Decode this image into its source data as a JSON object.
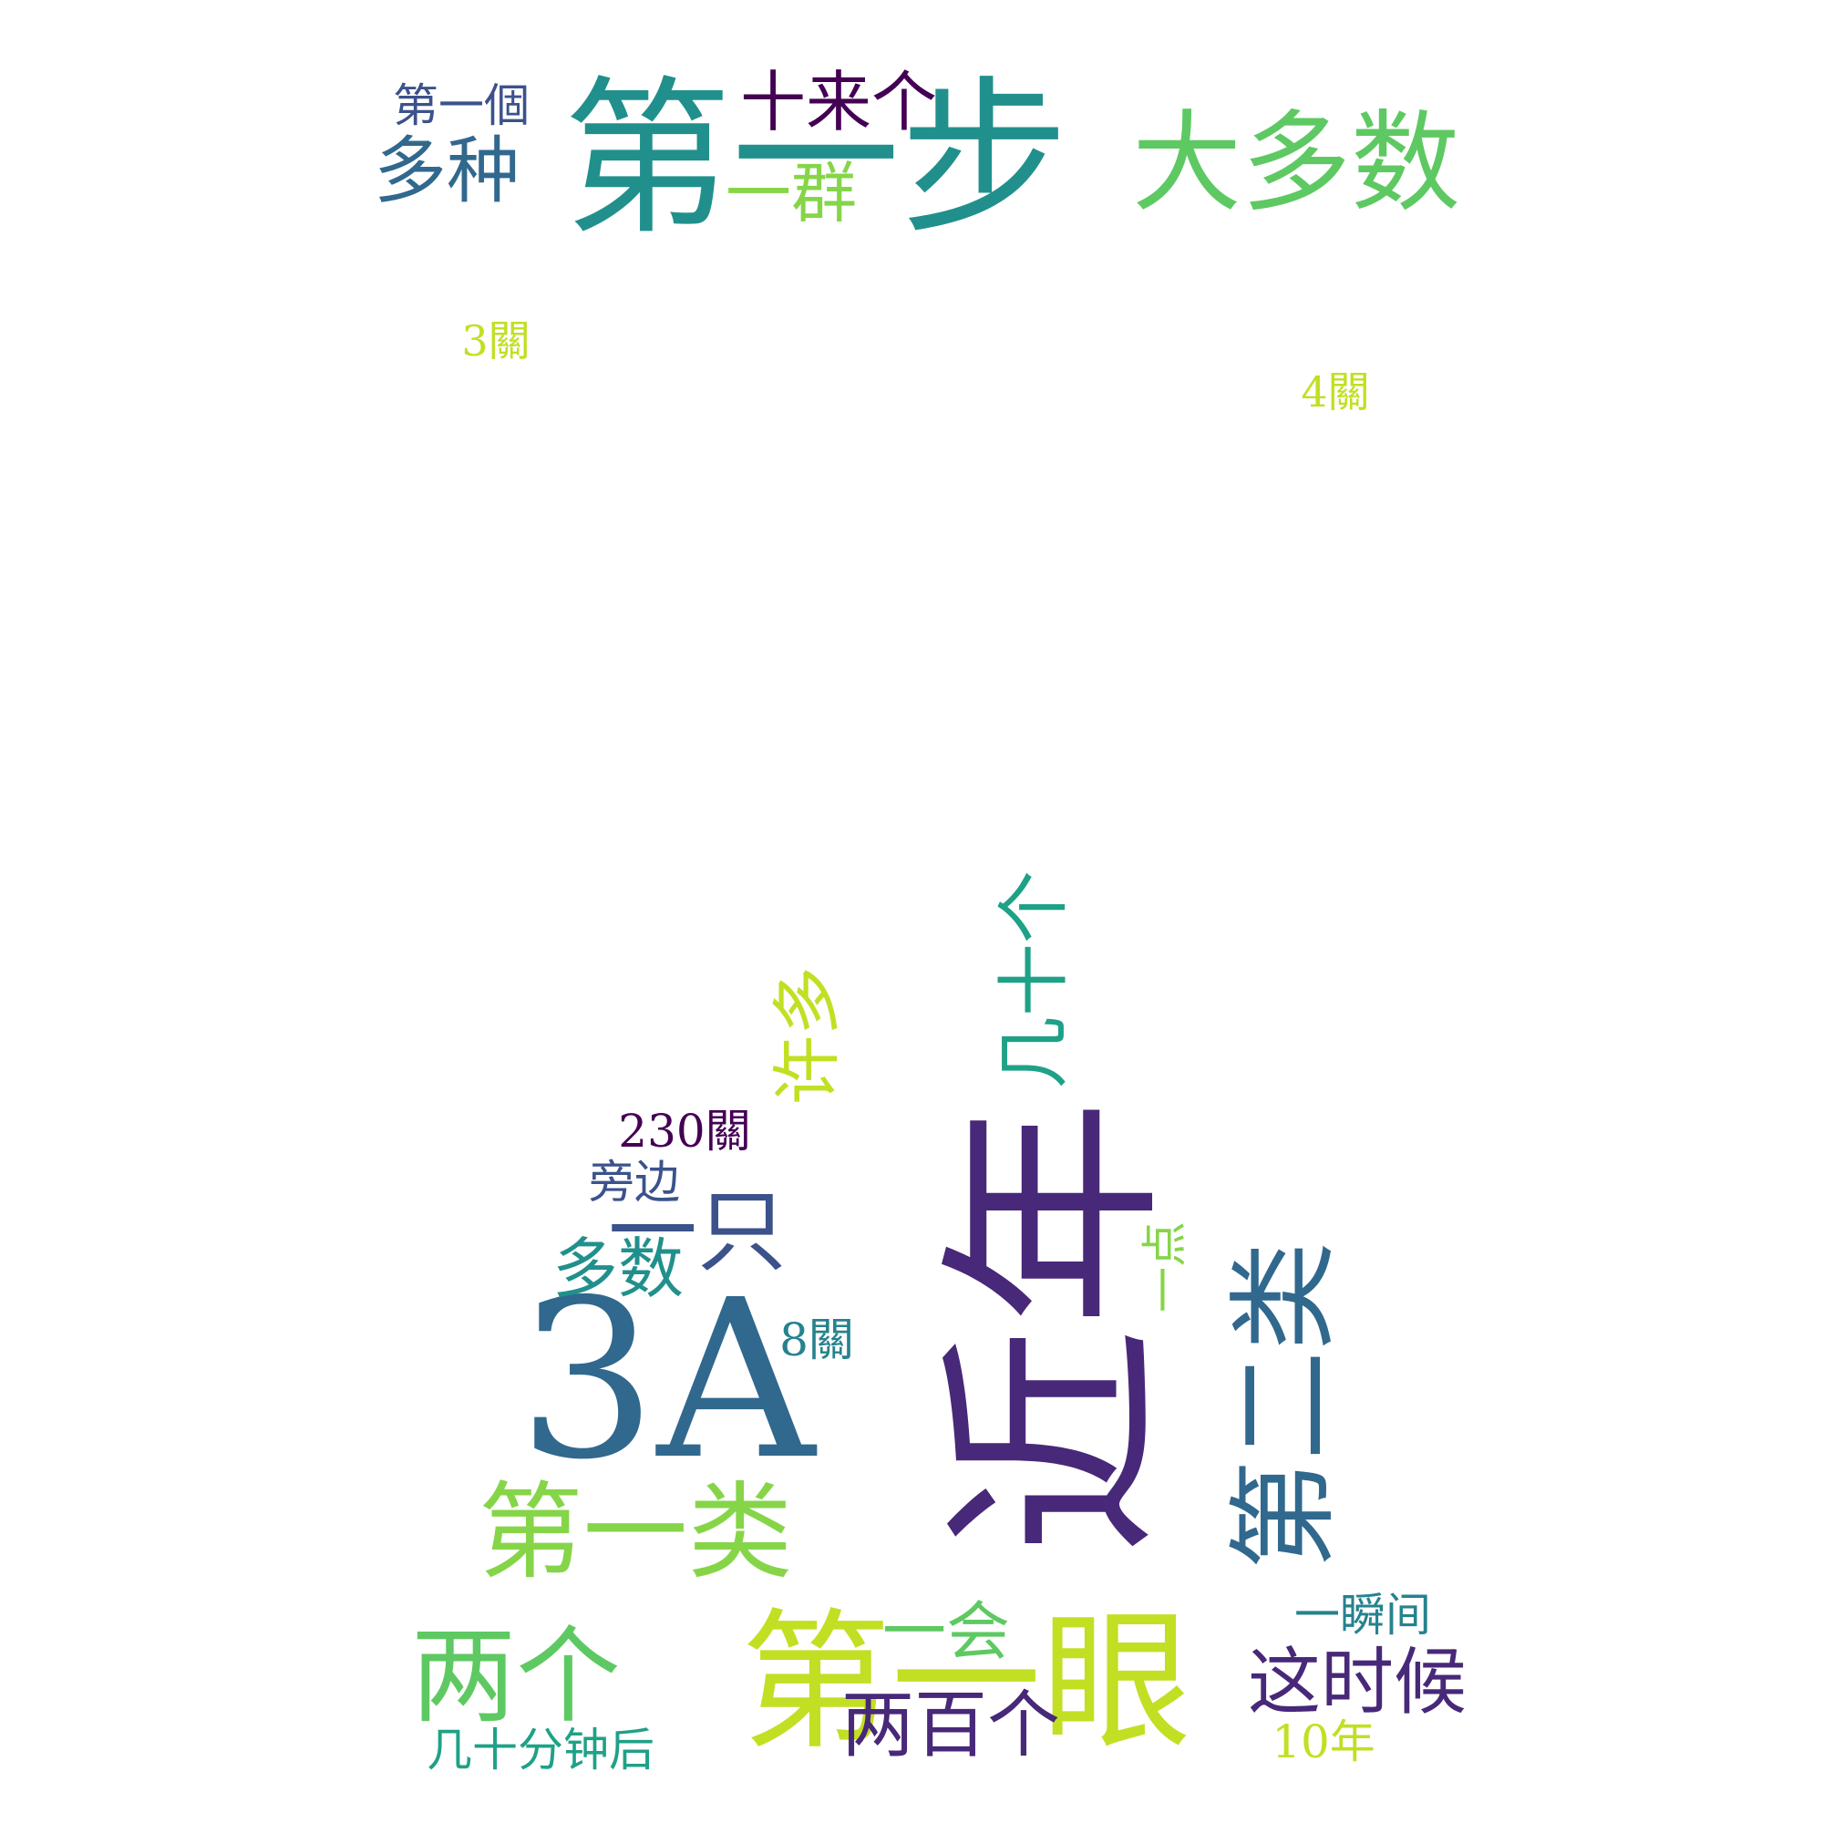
{
  "word_cloud": {
    "background": "#ffffff",
    "colors": {
      "teal": "#21908d",
      "green": "#5ec962",
      "lime": "#c2df23",
      "purple": "#482878",
      "dark": "#440154",
      "blue": "#31688e",
      "slate": "#3b528b",
      "sea": "#26828e",
      "mint": "#1fa187",
      "yellow_green": "#86d549"
    },
    "words": {
      "w01": "第一步",
      "w02": "大多数",
      "w03": "十来个",
      "w04": "第一個",
      "w05": "多种",
      "w06": "一群",
      "w07": "3關",
      "w08": "4關",
      "w09": "近年",
      "w10": "3A",
      "w11": "第一眼",
      "w12": "第一类",
      "w13": "第二类",
      "w14": "几十个",
      "w15": "许多",
      "w16": "一只",
      "w17": "多数",
      "w18": "230關",
      "w19": "旁边",
      "w20": "8關",
      "w21": "一点",
      "w22": "两个",
      "w23": "一会",
      "w24": "两百个",
      "w25": "这时候",
      "w26": "一瞬间",
      "w27": "几十分钟后",
      "w28": "10年"
    }
  }
}
